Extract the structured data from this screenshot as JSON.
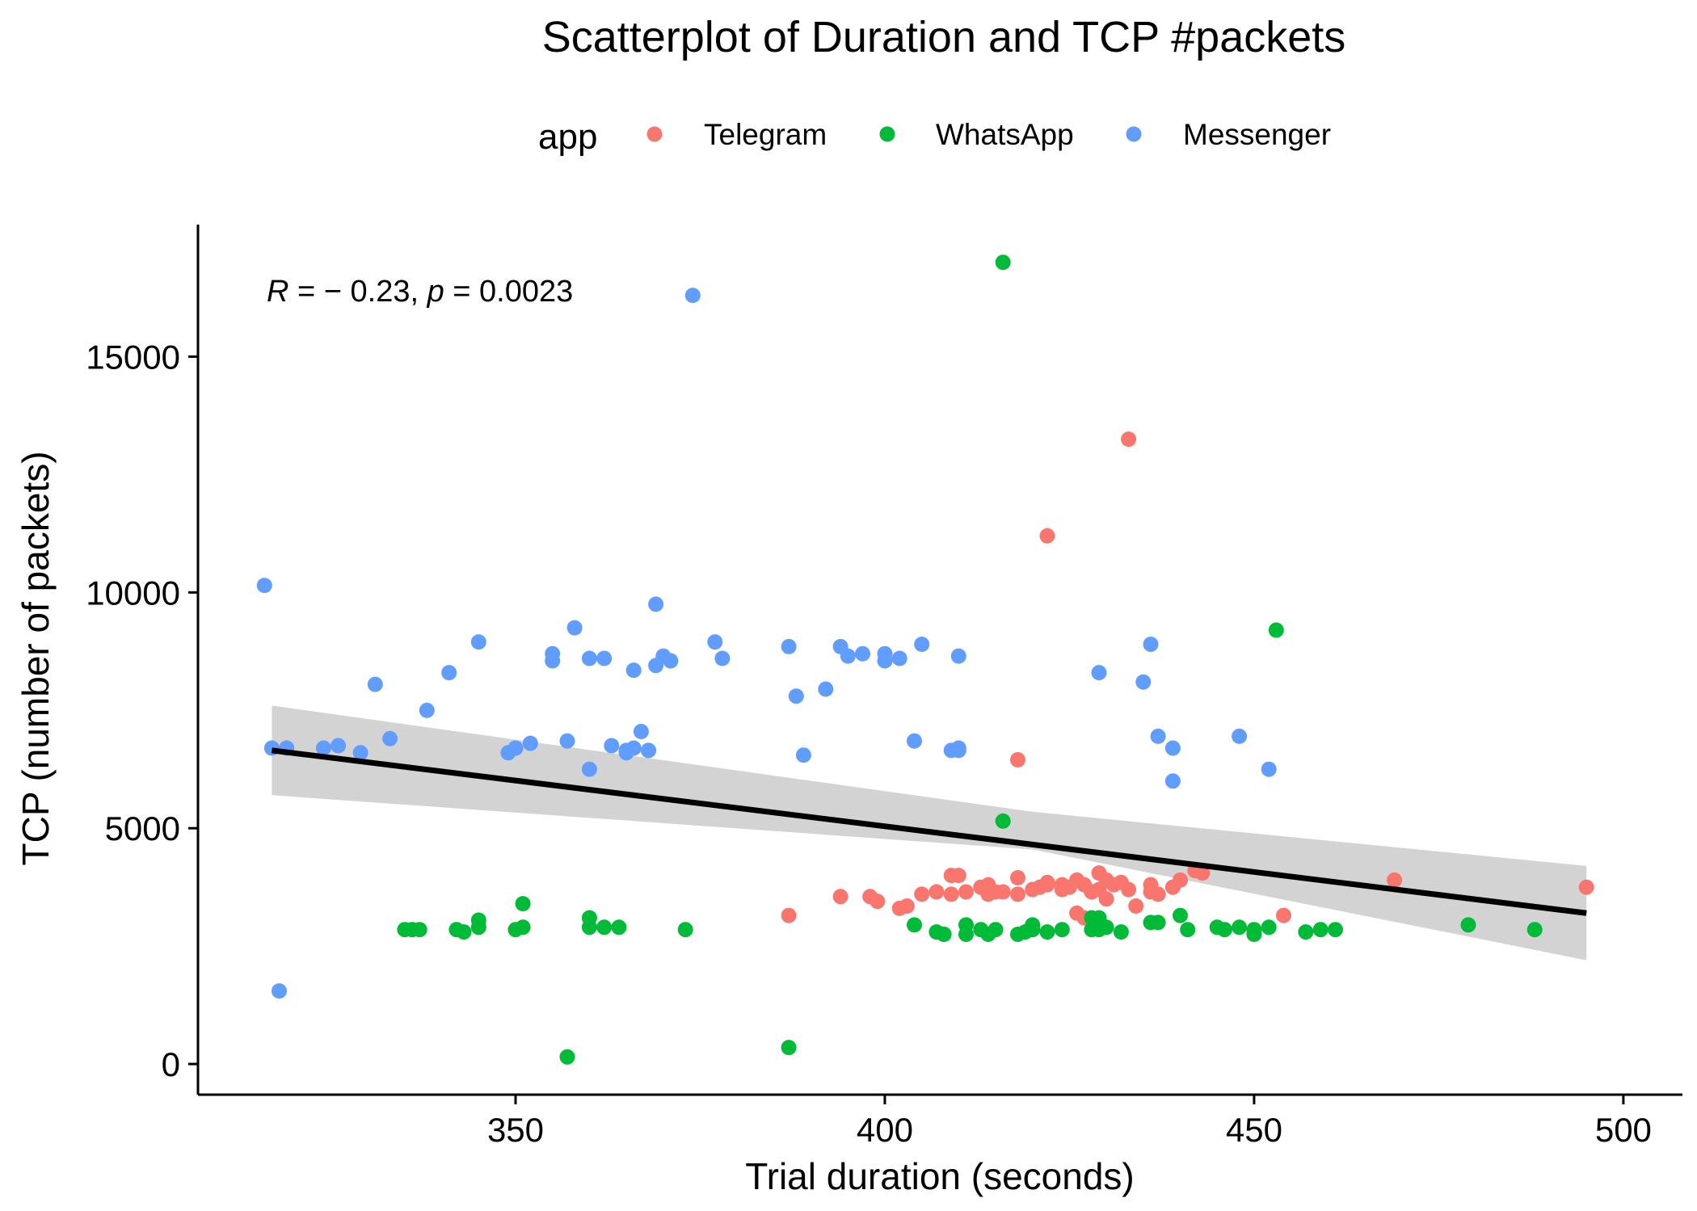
{
  "chart_data": {
    "type": "scatter",
    "title": "Scatterplot of Duration and TCP #packets",
    "xlabel": "Trial duration (seconds)",
    "ylabel": "TCP (number of packets)",
    "xlim": [
      307,
      508
    ],
    "ylim": [
      -650,
      17800
    ],
    "xticks": [
      350,
      400,
      450,
      500
    ],
    "yticks": [
      0,
      5000,
      10000,
      15000
    ],
    "legend": {
      "title": "app",
      "placement": "top",
      "entries": [
        {
          "name": "Telegram",
          "color": "#F8766D"
        },
        {
          "name": "WhatsApp",
          "color": "#00BA38"
        },
        {
          "name": "Messenger",
          "color": "#619CFF"
        }
      ]
    },
    "annotation": {
      "r_symbol": "R",
      "r_value": " = − 0.23, ",
      "p_symbol": "p",
      "p_value": " = 0.0023"
    },
    "trend": {
      "x": [
        317,
        495
      ],
      "y": [
        6650,
        3200
      ],
      "ci_upper": [
        7600,
        4200
      ],
      "ci_lower": [
        5700,
        2200
      ],
      "ci_mid_x": 420,
      "ci_mid_upper": [
        5350
      ],
      "ci_mid_lower": [
        4550
      ],
      "line_color": "#000000",
      "band_color": "#d3d3d3"
    },
    "series": [
      {
        "name": "Telegram",
        "color": "#F8766D",
        "x": [
          387,
          394,
          398,
          399,
          402,
          403,
          405,
          407,
          408,
          409,
          409,
          410,
          411,
          413,
          414,
          414,
          415,
          416,
          418,
          418,
          420,
          420,
          421,
          422,
          422,
          424,
          424,
          425,
          426,
          426,
          427,
          427,
          428,
          429,
          429,
          430,
          430,
          431,
          432,
          433,
          434,
          436,
          436,
          437,
          439,
          440,
          442,
          443,
          454,
          469,
          495,
          418,
          422,
          433
        ],
        "y": [
          3150,
          3550,
          3550,
          3450,
          3300,
          3350,
          3600,
          3650,
          2750,
          3600,
          4000,
          4000,
          3650,
          3750,
          3600,
          3800,
          3650,
          3650,
          3950,
          3600,
          3700,
          2900,
          3750,
          3850,
          3800,
          3800,
          3700,
          3750,
          3200,
          3900,
          3100,
          3800,
          3650,
          3700,
          4050,
          3900,
          3500,
          3800,
          3850,
          3700,
          3350,
          3800,
          3650,
          3600,
          3750,
          3900,
          4100,
          4050,
          3150,
          3900,
          3750,
          6450,
          11200,
          13250
        ]
      },
      {
        "name": "WhatsApp",
        "color": "#00BA38",
        "x": [
          335,
          336,
          337,
          342,
          343,
          345,
          345,
          350,
          351,
          351,
          357,
          360,
          360,
          362,
          364,
          373,
          387,
          404,
          407,
          408,
          411,
          411,
          413,
          414,
          415,
          416,
          418,
          419,
          420,
          420,
          422,
          424,
          428,
          428,
          429,
          429,
          430,
          432,
          436,
          437,
          440,
          441,
          445,
          446,
          448,
          450,
          450,
          452,
          457,
          459,
          461,
          479,
          488,
          416,
          453
        ],
        "y": [
          2850,
          2850,
          2850,
          2850,
          2800,
          3050,
          2900,
          2850,
          2900,
          3400,
          150,
          3100,
          2900,
          2900,
          2900,
          2850,
          350,
          2950,
          2800,
          2750,
          2950,
          2750,
          2850,
          2750,
          2850,
          5150,
          2750,
          2800,
          2950,
          2850,
          2800,
          2850,
          2850,
          3100,
          2850,
          3100,
          2900,
          2800,
          3000,
          3000,
          3150,
          2850,
          2900,
          2850,
          2900,
          2750,
          2850,
          2900,
          2800,
          2850,
          2850,
          2950,
          2850,
          17000,
          9200
        ]
      },
      {
        "name": "Messenger",
        "color": "#619CFF",
        "x": [
          316,
          317,
          319,
          324,
          326,
          329,
          331,
          333,
          338,
          341,
          345,
          349,
          350,
          352,
          355,
          355,
          357,
          358,
          360,
          360,
          362,
          363,
          365,
          365,
          366,
          366,
          367,
          368,
          368,
          369,
          369,
          370,
          371,
          374,
          377,
          378,
          387,
          388,
          389,
          392,
          394,
          395,
          397,
          400,
          400,
          402,
          404,
          405,
          409,
          410,
          410,
          410,
          429,
          435,
          436,
          437,
          439,
          439,
          448,
          452,
          318
        ],
        "y": [
          10150,
          6700,
          6700,
          6700,
          6750,
          6600,
          8050,
          6900,
          7500,
          8300,
          8950,
          6600,
          6700,
          6800,
          8700,
          8550,
          6850,
          9250,
          6250,
          8600,
          8600,
          6750,
          6600,
          6650,
          6700,
          8350,
          7050,
          6650,
          6650,
          9750,
          8450,
          8650,
          8550,
          16300,
          8950,
          8600,
          8850,
          7800,
          6550,
          7950,
          8850,
          8650,
          8700,
          8550,
          8700,
          8600,
          6850,
          8900,
          6650,
          6700,
          6650,
          8650,
          8300,
          8100,
          8900,
          6950,
          6000,
          6700,
          6950,
          6250,
          1550
        ]
      }
    ]
  }
}
